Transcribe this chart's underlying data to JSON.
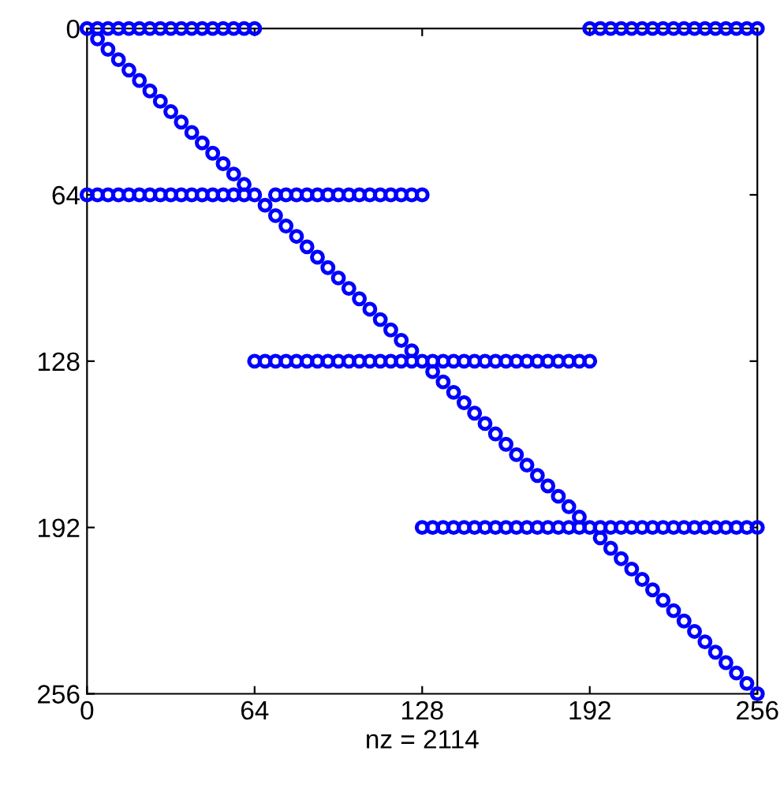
{
  "chart_data": {
    "type": "scatter",
    "xlabel": "nz = 2114",
    "xlim": [
      0,
      256
    ],
    "ylim": [
      256,
      0
    ],
    "xticks": [
      0,
      64,
      128,
      192,
      256
    ],
    "yticks": [
      0,
      64,
      128,
      192,
      256
    ],
    "grid": false,
    "marker": "circle",
    "series": [
      {
        "color": "#0000ff",
        "x": [
          0,
          4,
          8,
          12,
          16,
          20,
          24,
          28,
          32,
          36,
          40,
          44,
          48,
          52,
          56,
          60,
          64,
          68,
          72,
          76,
          80,
          84,
          88,
          92,
          96,
          100,
          104,
          108,
          112,
          116,
          120,
          124,
          128,
          132,
          136,
          140,
          144,
          148,
          152,
          156,
          160,
          164,
          168,
          172,
          176,
          180,
          184,
          188,
          192,
          196,
          200,
          204,
          208,
          212,
          216,
          220,
          224,
          228,
          232,
          236,
          240,
          244,
          248,
          252,
          256
        ],
        "values": [
          0,
          4,
          8,
          12,
          16,
          20,
          24,
          28,
          32,
          36,
          40,
          44,
          48,
          52,
          56,
          60,
          64,
          68,
          72,
          76,
          80,
          84,
          88,
          92,
          96,
          100,
          104,
          108,
          112,
          116,
          120,
          124,
          128,
          132,
          136,
          140,
          144,
          148,
          152,
          156,
          160,
          164,
          168,
          172,
          176,
          180,
          184,
          188,
          192,
          196,
          200,
          204,
          208,
          212,
          216,
          220,
          224,
          228,
          232,
          236,
          240,
          244,
          248,
          252,
          256
        ]
      },
      {
        "color": "#0000ff",
        "x": [
          4,
          8,
          12,
          16,
          20,
          24,
          28,
          32,
          36,
          40,
          44,
          48,
          52,
          56,
          60,
          64,
          192,
          196,
          200,
          204,
          208,
          212,
          216,
          220,
          224,
          228,
          232,
          236,
          240,
          244,
          248,
          252,
          256
        ],
        "values": [
          0,
          0,
          0,
          0,
          0,
          0,
          0,
          0,
          0,
          0,
          0,
          0,
          0,
          0,
          0,
          0,
          0,
          0,
          0,
          0,
          0,
          0,
          0,
          0,
          0,
          0,
          0,
          0,
          0,
          0,
          0,
          0,
          0
        ]
      },
      {
        "color": "#0000ff",
        "x": [
          0,
          4,
          8,
          12,
          16,
          20,
          24,
          28,
          32,
          36,
          40,
          44,
          48,
          52,
          56,
          60,
          72,
          76,
          80,
          84,
          88,
          92,
          96,
          100,
          104,
          108,
          112,
          116,
          120,
          124,
          128
        ],
        "values": [
          64,
          64,
          64,
          64,
          64,
          64,
          64,
          64,
          64,
          64,
          64,
          64,
          64,
          64,
          64,
          64,
          64,
          64,
          64,
          64,
          64,
          64,
          64,
          64,
          64,
          64,
          64,
          64,
          64,
          64,
          64
        ]
      },
      {
        "color": "#0000ff",
        "x": [
          64,
          68,
          72,
          76,
          80,
          84,
          88,
          92,
          96,
          100,
          104,
          108,
          112,
          116,
          120,
          124,
          132,
          136,
          140,
          144,
          148,
          152,
          156,
          160,
          164,
          168,
          172,
          176,
          180,
          184,
          188,
          192
        ],
        "values": [
          128,
          128,
          128,
          128,
          128,
          128,
          128,
          128,
          128,
          128,
          128,
          128,
          128,
          128,
          128,
          128,
          128,
          128,
          128,
          128,
          128,
          128,
          128,
          128,
          128,
          128,
          128,
          128,
          128,
          128,
          128,
          128
        ]
      },
      {
        "color": "#0000ff",
        "x": [
          128,
          132,
          136,
          140,
          144,
          148,
          152,
          156,
          160,
          164,
          168,
          172,
          176,
          180,
          184,
          188,
          196,
          200,
          204,
          208,
          212,
          216,
          220,
          224,
          228,
          232,
          236,
          240,
          244,
          248,
          252,
          256
        ],
        "values": [
          192,
          192,
          192,
          192,
          192,
          192,
          192,
          192,
          192,
          192,
          192,
          192,
          192,
          192,
          192,
          192,
          192,
          192,
          192,
          192,
          192,
          192,
          192,
          192,
          192,
          192,
          192,
          192,
          192,
          192,
          192,
          192
        ]
      }
    ]
  }
}
